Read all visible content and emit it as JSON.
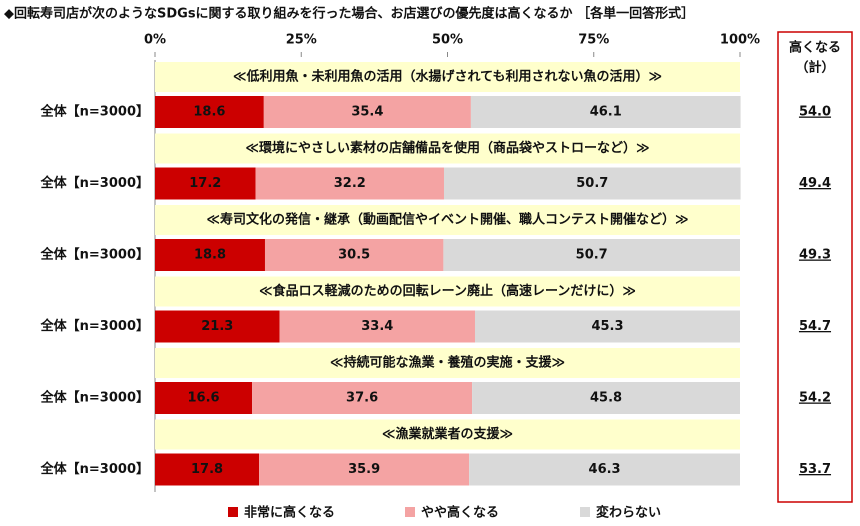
{
  "chart_data": {
    "type": "stacked-bar",
    "title": "◆回転寿司店が次のようなSDGsに関する取り組みを行った場合、お店選びの優先度は高くなるか ［各単一回答形式］",
    "categories": [
      "≪低利用魚・未利用魚の活用（水揚げされても利用されない魚の活用）≫",
      "≪環境にやさしい素材の店舗備品を使用（商品袋やストローなど）≫",
      "≪寿司文化の発信・継承（動画配信やイベント開催、職人コンテスト開催など）≫",
      "≪食品ロス軽減のための回転レーン廃止（高速レーンだけに）≫",
      "≪持続可能な漁業・養殖の実施・支援≫",
      "≪漁業就業者の支援≫"
    ],
    "row_labels": [
      "全体【n=3000】",
      "全体【n=3000】",
      "全体【n=3000】",
      "全体【n=3000】",
      "全体【n=3000】",
      "全体【n=3000】"
    ],
    "series": [
      {
        "name": "非常に高くなる",
        "color": "#cc0000",
        "values": [
          18.6,
          17.2,
          18.8,
          21.3,
          16.6,
          17.8
        ]
      },
      {
        "name": "やや高くなる",
        "color": "#f4a3a3",
        "values": [
          35.4,
          32.2,
          30.5,
          33.4,
          37.6,
          35.9
        ]
      },
      {
        "name": "変わらない",
        "color": "#d9d9d9",
        "values": [
          46.1,
          50.7,
          50.7,
          45.3,
          45.8,
          46.3
        ]
      }
    ],
    "xlim": [
      0,
      100
    ],
    "xticks": [
      {
        "value": 0,
        "label": "0%"
      },
      {
        "value": 25,
        "label": "25%"
      },
      {
        "value": 50,
        "label": "50%"
      },
      {
        "value": 75,
        "label": "75%"
      },
      {
        "value": 100,
        "label": "100%"
      }
    ],
    "totals": {
      "header": [
        "高くなる",
        "（計）"
      ],
      "values": [
        54,
        49.4,
        49.3,
        54.7,
        54.2,
        53.7
      ],
      "value_labels": [
        "54.0",
        "49.4",
        "49.3",
        "54.7",
        "54.2",
        "53.7"
      ]
    },
    "legend": "bottom"
  }
}
